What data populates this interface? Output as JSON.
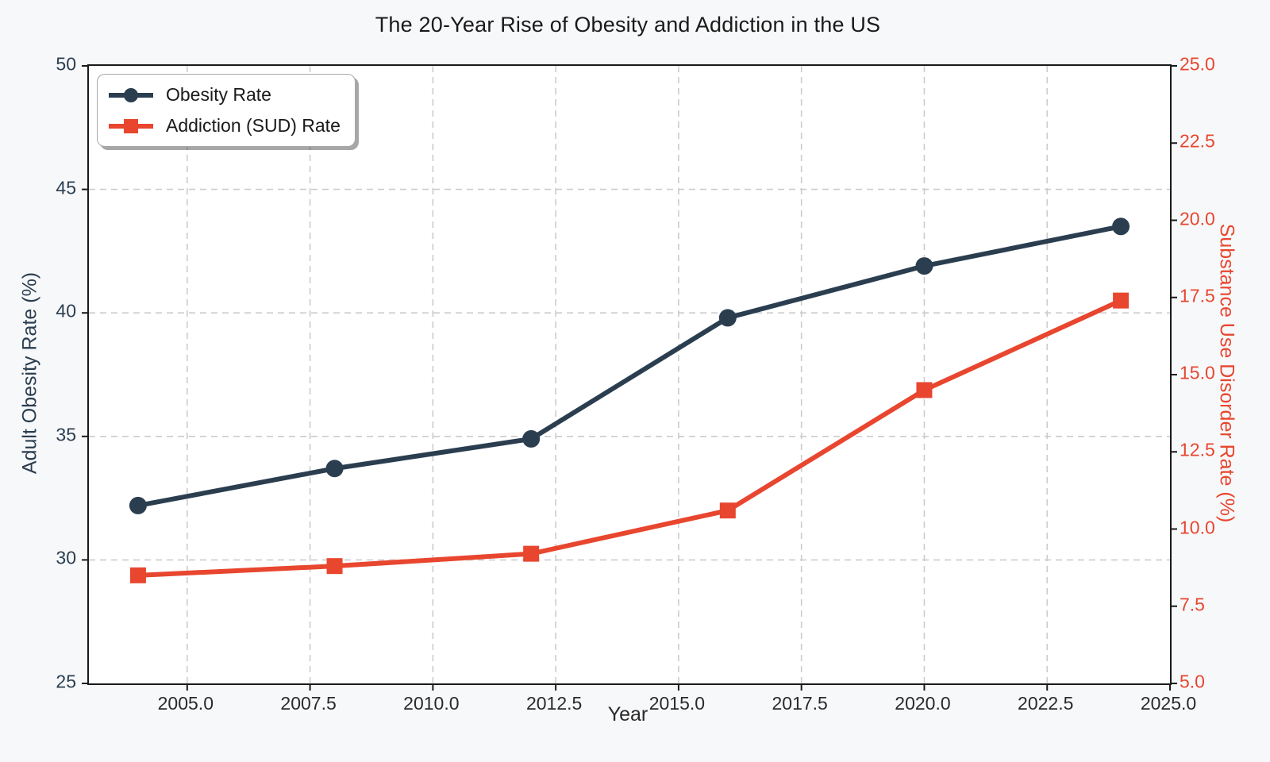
{
  "chart_data": {
    "type": "line",
    "title": "The 20-Year Rise of Obesity and Addiction in the US",
    "xlabel": "Year",
    "ylabel_left": "Adult Obesity Rate (%)",
    "ylabel_right": "Substance Use Disorder Rate (%)",
    "x": [
      2004,
      2008,
      2012,
      2016,
      2020,
      2024
    ],
    "series": [
      {
        "name": "Obesity Rate",
        "axis": "left",
        "color": "#2b3e50",
        "marker": "circle",
        "values": [
          32.2,
          33.7,
          34.9,
          39.8,
          41.9,
          43.5
        ]
      },
      {
        "name": "Addiction (SUD) Rate",
        "axis": "right",
        "color": "#e8462f",
        "marker": "square",
        "values": [
          8.5,
          8.8,
          9.2,
          10.6,
          14.5,
          17.4
        ]
      }
    ],
    "xlim": [
      2003,
      2025
    ],
    "ylim_left": [
      25,
      50
    ],
    "ylim_right": [
      5,
      25
    ],
    "xticks": [
      "2005.0",
      "2007.5",
      "2010.0",
      "2012.5",
      "2015.0",
      "2017.5",
      "2020.0",
      "2022.5",
      "2025.0"
    ],
    "yticks_left": [
      "25",
      "30",
      "35",
      "40",
      "45",
      "50"
    ],
    "yticks_right": [
      "5.0",
      "7.5",
      "10.0",
      "12.5",
      "15.0",
      "17.5",
      "20.0",
      "22.5",
      "25.0"
    ],
    "grid": true,
    "legend_position": "upper left",
    "colors": {
      "obesity_line": "#2b3e50",
      "addiction_line": "#e8462f",
      "grid": "#cccccc",
      "figure_bg": "#f7f8fa",
      "axes_bg": "#ffffff",
      "spine": "#1a1a1a",
      "tick_text": "#2a2a2a",
      "title_text": "#1a1a1a"
    }
  }
}
